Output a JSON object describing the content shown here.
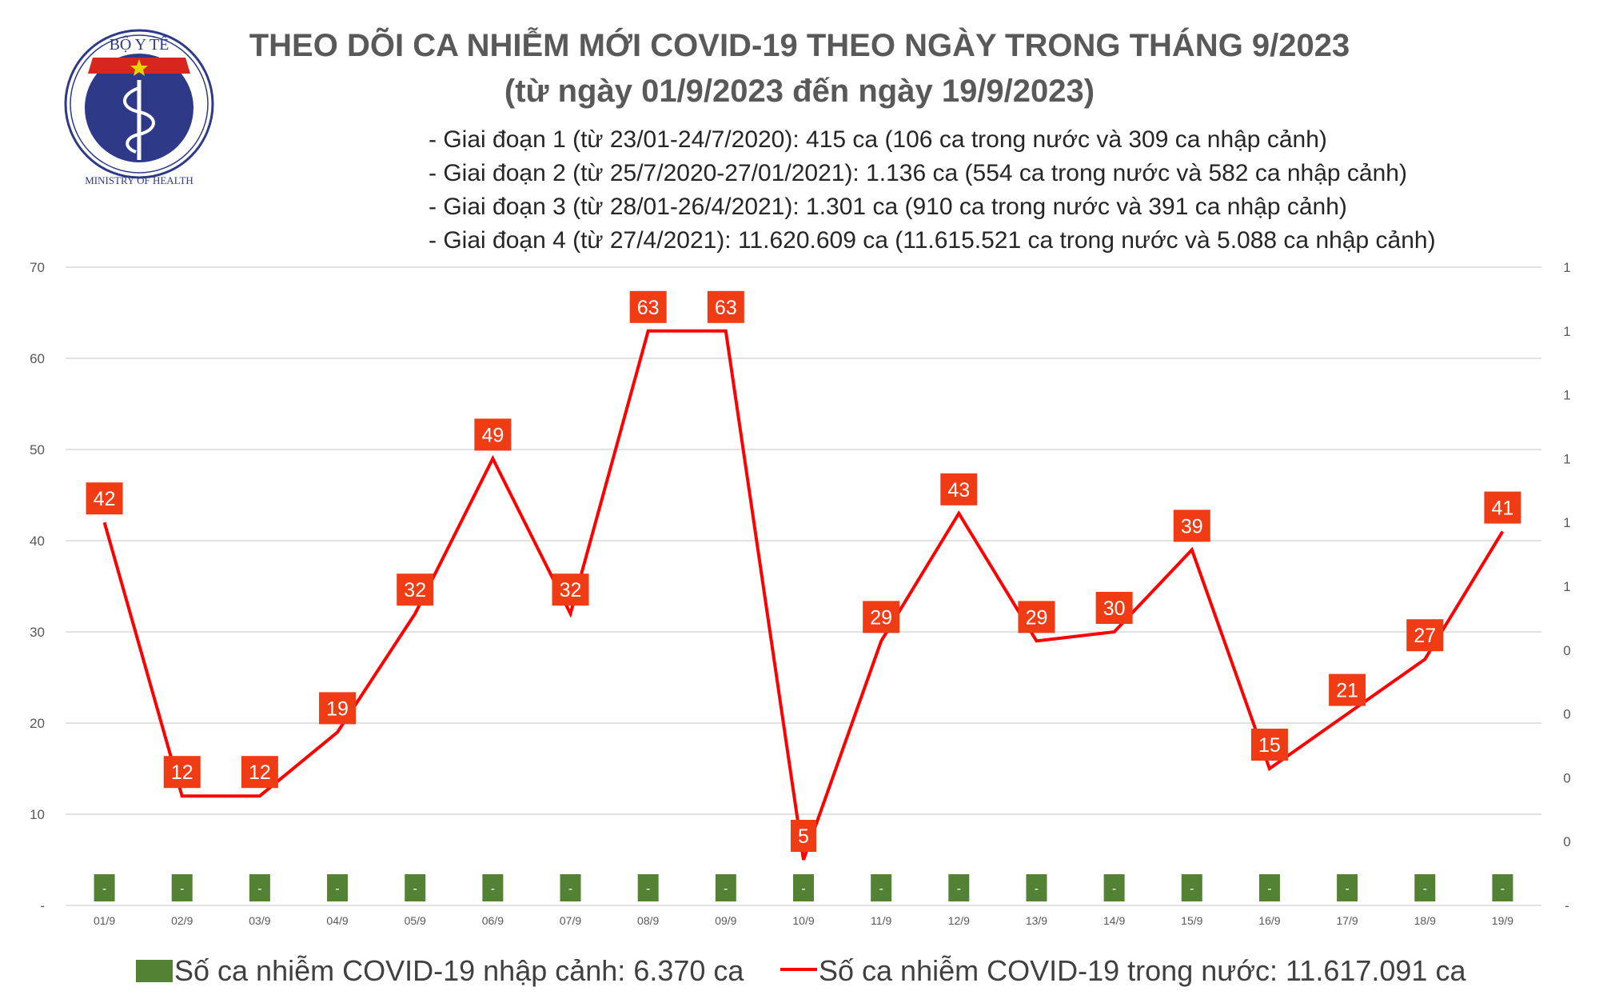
{
  "logo": {
    "top_text": "BỘ Y TẾ",
    "bottom_text": "MINISTRY OF HEALTH",
    "colors": {
      "ring": "#2e3a87",
      "star": "#e8d300",
      "banner": "#d7261e"
    }
  },
  "header": {
    "title": "THEO DÕI CA NHIỄM MỚI COVID-19 THEO NGÀY TRONG THÁNG 9/2023",
    "subtitle": "(từ ngày 01/9/2023 đến ngày 19/9/2023)",
    "phases": [
      "- Giai đoạn 1 (từ 23/01-24/7/2020): 415 ca (106 ca trong nước và 309 ca nhập cảnh)",
      "- Giai đoạn 2 (từ 25/7/2020-27/01/2021): 1.136 ca (554 ca trong nước và 582 ca nhập cảnh)",
      "- Giai đoạn 3 (từ 28/01-26/4/2021): 1.301 ca (910 ca trong nước và 391 ca nhập cảnh)",
      "- Giai đoạn 4 (từ 27/4/2021): 11.620.609 ca (11.615.521 ca trong nước và 5.088 ca nhập cảnh)"
    ]
  },
  "chart_data": {
    "type": "line",
    "categories": [
      "01/9",
      "02/9",
      "03/9",
      "04/9",
      "05/9",
      "06/9",
      "07/9",
      "08/9",
      "09/9",
      "10/9",
      "11/9",
      "12/9",
      "13/9",
      "14/9",
      "15/9",
      "16/9",
      "17/9",
      "18/9",
      "19/9"
    ],
    "series": [
      {
        "name": "Số ca nhiễm COVID-19 trong nước: 11.617.091 ca",
        "type": "line",
        "axis": "left",
        "color": "#ff0000",
        "label_color": "#f03c14",
        "values": [
          42,
          12,
          12,
          19,
          32,
          49,
          32,
          63,
          63,
          5,
          29,
          43,
          29,
          30,
          39,
          15,
          21,
          27,
          41
        ]
      },
      {
        "name": "Số ca nhiễm COVID-19 nhập cảnh: 6.370 ca",
        "type": "bar",
        "axis": "right",
        "color": "#548235",
        "values": [
          0,
          0,
          0,
          0,
          0,
          0,
          0,
          0,
          0,
          0,
          0,
          0,
          0,
          0,
          0,
          0,
          0,
          0,
          0
        ],
        "labels": [
          "-",
          "-",
          "-",
          "-",
          "-",
          "-",
          "-",
          "-",
          "-",
          "-",
          "-",
          "-",
          "-",
          "-",
          "-",
          "-",
          "-",
          "-",
          "-"
        ]
      }
    ],
    "y_left": {
      "ticks": [
        "-",
        "10",
        "20",
        "30",
        "40",
        "50",
        "60",
        "70"
      ],
      "ylim": [
        0,
        70
      ]
    },
    "y_right": {
      "ticks": [
        "-",
        "0",
        "0",
        "0",
        "0",
        "1",
        "1",
        "1",
        "1",
        "1",
        "1"
      ]
    },
    "grid": true,
    "legend": "bottom"
  }
}
